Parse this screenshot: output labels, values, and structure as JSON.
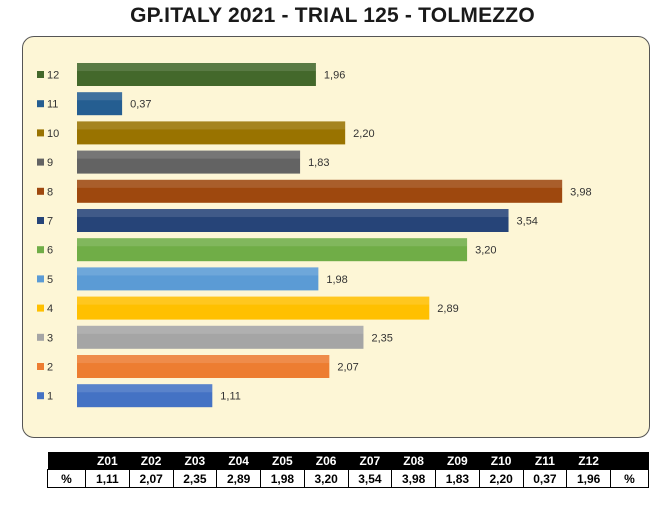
{
  "title": "GP.ITALY 2021 - TRIAL 125 - TOLMEZZO",
  "chart_data": {
    "type": "bar",
    "orientation": "horizontal",
    "categories": [
      "1",
      "2",
      "3",
      "4",
      "5",
      "6",
      "7",
      "8",
      "9",
      "10",
      "11",
      "12"
    ],
    "values": [
      1.11,
      2.07,
      2.35,
      2.89,
      1.98,
      3.2,
      3.54,
      3.98,
      1.83,
      2.2,
      0.37,
      1.96
    ],
    "value_labels": [
      "1,11",
      "2,07",
      "2,35",
      "2,89",
      "1,98",
      "3,20",
      "3,54",
      "3,98",
      "1,83",
      "2,20",
      "0,37",
      "1,96"
    ],
    "colors": [
      "#4472c4",
      "#ed7d31",
      "#a5a5a5",
      "#ffc000",
      "#5b9bd5",
      "#70ad47",
      "#264478",
      "#9e480e",
      "#636363",
      "#997300",
      "#255e91",
      "#43682b"
    ],
    "xlim": [
      0,
      4.0
    ],
    "grid": false,
    "legend": "none"
  },
  "table": {
    "headers": [
      "",
      "Z01",
      "Z02",
      "Z03",
      "Z04",
      "Z05",
      "Z06",
      "Z07",
      "Z08",
      "Z09",
      "Z10",
      "Z11",
      "Z12",
      ""
    ],
    "row": [
      "%",
      "1,11",
      "2,07",
      "2,35",
      "2,89",
      "1,98",
      "3,20",
      "3,54",
      "3,98",
      "1,83",
      "2,20",
      "0,37",
      "1,96",
      "%"
    ]
  }
}
